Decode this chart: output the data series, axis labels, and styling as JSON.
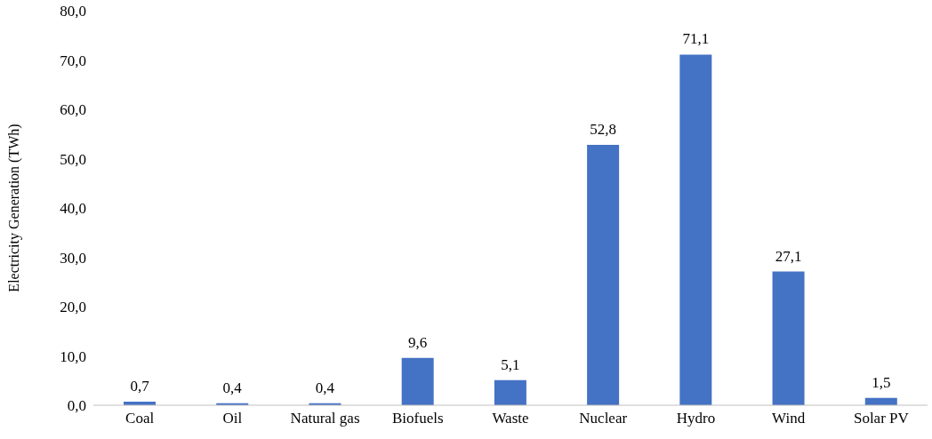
{
  "chart_data": {
    "type": "bar",
    "ylabel": "Electricity Generation (TWh)",
    "categories": [
      "Coal",
      "Oil",
      "Natural gas",
      "Biofuels",
      "Waste",
      "Nuclear",
      "Hydro",
      "Wind",
      "Solar PV"
    ],
    "values": [
      0.7,
      0.4,
      0.4,
      9.6,
      5.1,
      52.8,
      71.1,
      27.1,
      1.5
    ],
    "value_labels": [
      "0,7",
      "0,4",
      "0,4",
      "9,6",
      "5,1",
      "52,8",
      "71,1",
      "27,1",
      "1,5"
    ],
    "color": "#4472c4",
    "ylim": [
      0,
      80
    ],
    "yticks": [
      {
        "value": 0,
        "label": "0,0"
      },
      {
        "value": 10,
        "label": "10,0"
      },
      {
        "value": 20,
        "label": "20,0"
      },
      {
        "value": 30,
        "label": "30,0"
      },
      {
        "value": 40,
        "label": "40,0"
      },
      {
        "value": 50,
        "label": "50,0"
      },
      {
        "value": 60,
        "label": "60,0"
      },
      {
        "value": 70,
        "label": "70,0"
      },
      {
        "value": 80,
        "label": "80,0"
      }
    ]
  }
}
